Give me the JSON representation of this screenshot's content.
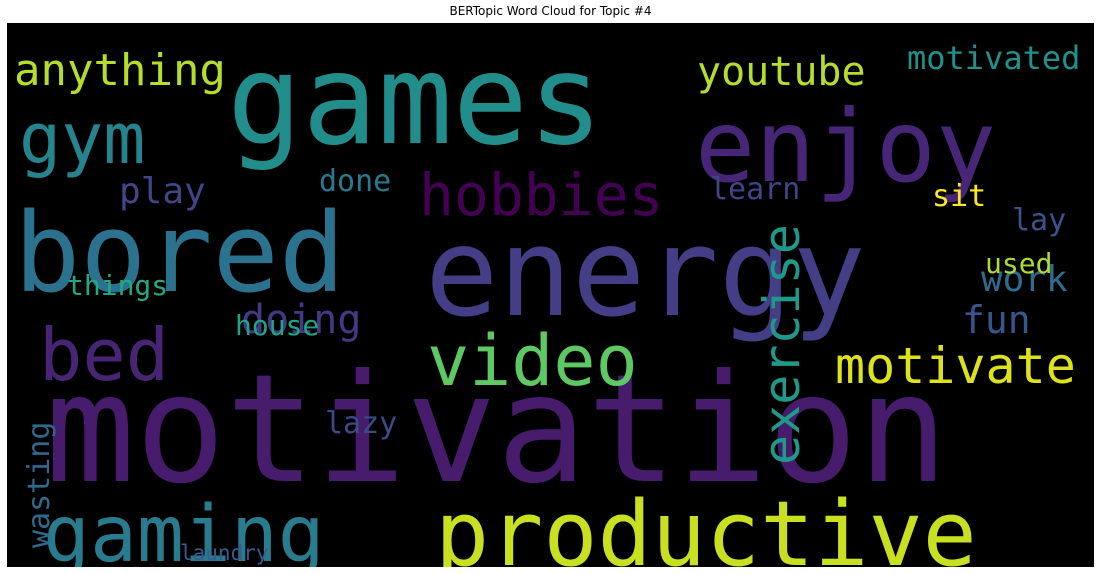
{
  "title": "BERTopic Word Cloud for Topic #4",
  "chart_data": {
    "type": "wordcloud",
    "title": "BERTopic Word Cloud for Topic #4",
    "background": "#000000",
    "colormap": "viridis",
    "words": [
      {
        "text": "motivation",
        "color": "#471c6d"
      },
      {
        "text": "games",
        "color": "#218e8c"
      },
      {
        "text": "energy",
        "color": "#433e85"
      },
      {
        "text": "bored",
        "color": "#2b728e"
      },
      {
        "text": "enjoy",
        "color": "#482677"
      },
      {
        "text": "productive",
        "color": "#c8e020"
      },
      {
        "text": "gaming",
        "color": "#297b8e"
      },
      {
        "text": "video",
        "color": "#5ec962"
      },
      {
        "text": "gym",
        "color": "#25848e"
      },
      {
        "text": "bed",
        "color": "#482475"
      },
      {
        "text": "hobbies",
        "color": "#440154"
      },
      {
        "text": "motivate",
        "color": "#dde318"
      },
      {
        "text": "exercise",
        "color": "#1f9a8a"
      },
      {
        "text": "anything",
        "color": "#b5de2b"
      },
      {
        "text": "youtube",
        "color": "#b5de2b"
      },
      {
        "text": "motivated",
        "color": "#21918c"
      },
      {
        "text": "doing",
        "color": "#443983"
      },
      {
        "text": "play",
        "color": "#404688"
      },
      {
        "text": "work",
        "color": "#2f6c8e"
      },
      {
        "text": "fun",
        "color": "#39568c"
      },
      {
        "text": "done",
        "color": "#2a788e"
      },
      {
        "text": "learn",
        "color": "#414487"
      },
      {
        "text": "things",
        "color": "#22a884"
      },
      {
        "text": "house",
        "color": "#20a486"
      },
      {
        "text": "sit",
        "color": "#fde725"
      },
      {
        "text": "lay",
        "color": "#3b528b"
      },
      {
        "text": "used",
        "color": "#addc30"
      },
      {
        "text": "lazy",
        "color": "#3e4989"
      },
      {
        "text": "wasting",
        "color": "#31688e"
      },
      {
        "text": "laundry",
        "color": "#365c8d"
      }
    ]
  }
}
